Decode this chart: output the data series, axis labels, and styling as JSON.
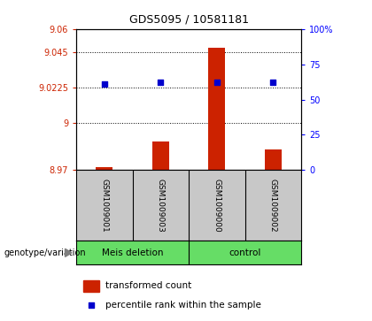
{
  "title": "GDS5095 / 10581181",
  "samples": [
    "GSM1009001",
    "GSM1009003",
    "GSM1009000",
    "GSM1009002"
  ],
  "bar_values": [
    8.972,
    8.988,
    9.048,
    8.983
  ],
  "dot_values": [
    9.025,
    9.026,
    9.026,
    9.026
  ],
  "ylim_left": [
    8.97,
    9.06
  ],
  "yticks_left": [
    8.97,
    9.0,
    9.0225,
    9.045,
    9.06
  ],
  "ytick_labels_left": [
    "8.97",
    "9",
    "9.0225",
    "9.045",
    "9.06"
  ],
  "ylim_right": [
    0,
    100
  ],
  "yticks_right": [
    0,
    25,
    50,
    75,
    100
  ],
  "ytick_labels_right": [
    "0",
    "25",
    "50",
    "75",
    "100%"
  ],
  "bar_color": "#cc2200",
  "dot_color": "#0000cc",
  "bg_color": "#c8c8c8",
  "green_color": "#66dd66",
  "legend_bar": "transformed count",
  "legend_dot": "percentile rank within the sample",
  "group_label": "genotype/variation",
  "group_names": [
    "Meis deletion",
    "control"
  ],
  "dotted_yticks": [
    9.0,
    9.0225,
    9.045
  ],
  "bar_width": 0.3
}
